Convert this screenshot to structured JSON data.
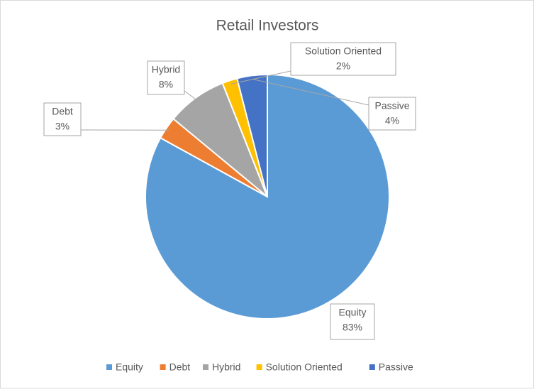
{
  "chart_data": {
    "type": "pie",
    "title": "Retail Investors",
    "categories": [
      "Equity",
      "Debt",
      "Hybrid",
      "Solution Oriented",
      "Passive"
    ],
    "values": [
      83,
      3,
      8,
      2,
      4
    ],
    "value_labels": [
      "83%",
      "3%",
      "8%",
      "2%",
      "4%"
    ],
    "colors": [
      "#5b9bd5",
      "#ed7d31",
      "#a5a5a5",
      "#ffc000",
      "#4472c4"
    ],
    "legend": "bottom"
  }
}
